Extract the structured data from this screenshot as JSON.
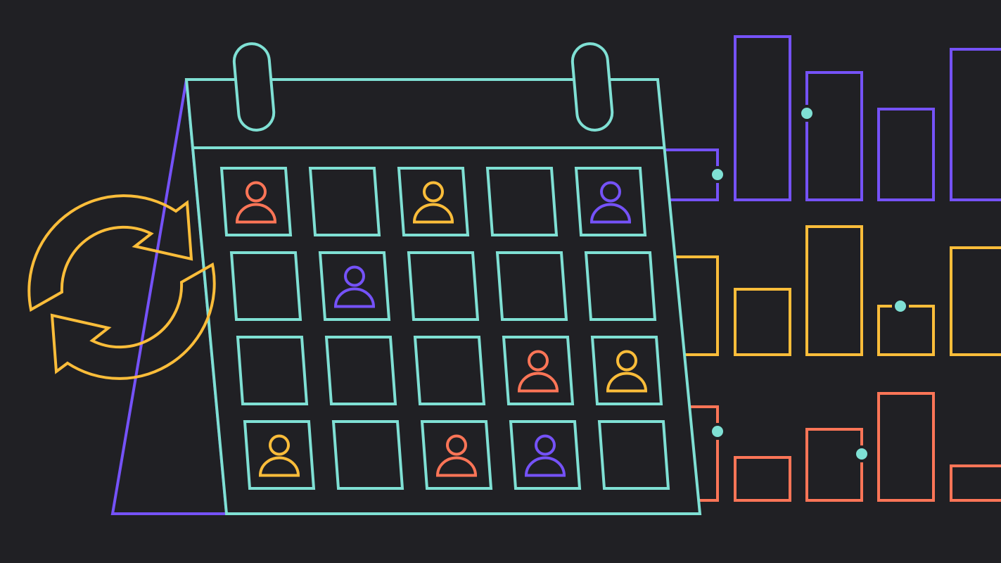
{
  "colors": {
    "background": "#202024",
    "teal": "#7fe0d4",
    "purple": "#7552f8",
    "yellow": "#fbbd3a",
    "coral": "#fd7557"
  },
  "calendar": {
    "rows": [
      [
        "coral",
        null,
        "yellow",
        null,
        "purple"
      ],
      [
        null,
        "purple",
        null,
        null,
        null
      ],
      [
        null,
        null,
        null,
        "coral",
        "yellow"
      ],
      [
        "yellow",
        null,
        "coral",
        "purple",
        null
      ]
    ]
  },
  "icons": [
    "sync-arrows-icon",
    "calendar-icon",
    "person-icon",
    "bar-chart-icon"
  ],
  "bar_rows": [
    {
      "color": "purple"
    },
    {
      "color": "yellow"
    },
    {
      "color": "coral"
    }
  ]
}
